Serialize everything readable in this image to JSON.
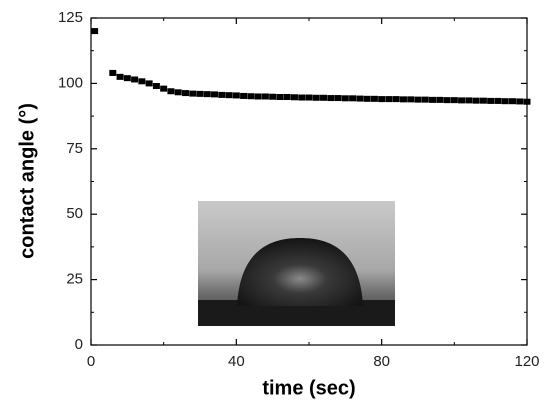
{
  "chart_data": {
    "type": "scatter",
    "xlabel": "time (sec)",
    "ylabel": "contact angle (°)",
    "xlim": [
      0,
      120
    ],
    "xticks": [
      0,
      40,
      80,
      120
    ],
    "ylim": [
      0,
      125
    ],
    "yticks": [
      0,
      25,
      50,
      75,
      100,
      125
    ],
    "color": "#000000",
    "x": [
      1,
      6,
      8,
      10,
      12,
      14,
      16,
      18,
      20,
      22,
      24,
      26,
      28,
      30,
      32,
      34,
      36,
      38,
      40,
      42,
      44,
      46,
      48,
      50,
      52,
      54,
      56,
      58,
      60,
      62,
      64,
      66,
      68,
      70,
      72,
      74,
      76,
      78,
      80,
      82,
      84,
      86,
      88,
      90,
      92,
      94,
      96,
      98,
      100,
      102,
      104,
      106,
      108,
      110,
      112,
      114,
      116,
      118,
      120
    ],
    "values": [
      120,
      104,
      102.5,
      102,
      101.5,
      100.8,
      100,
      99,
      98,
      97,
      96.6,
      96.3,
      96.1,
      96,
      95.9,
      95.8,
      95.6,
      95.5,
      95.4,
      95.2,
      95.1,
      95,
      95,
      94.9,
      94.8,
      94.8,
      94.7,
      94.6,
      94.6,
      94.5,
      94.5,
      94.4,
      94.4,
      94.3,
      94.3,
      94.2,
      94.1,
      94.1,
      94,
      94,
      94,
      93.9,
      93.9,
      93.8,
      93.8,
      93.7,
      93.7,
      93.6,
      93.6,
      93.5,
      93.5,
      93.4,
      93.4,
      93.3,
      93.3,
      93.2,
      93.2,
      93.1,
      93
    ]
  }
}
